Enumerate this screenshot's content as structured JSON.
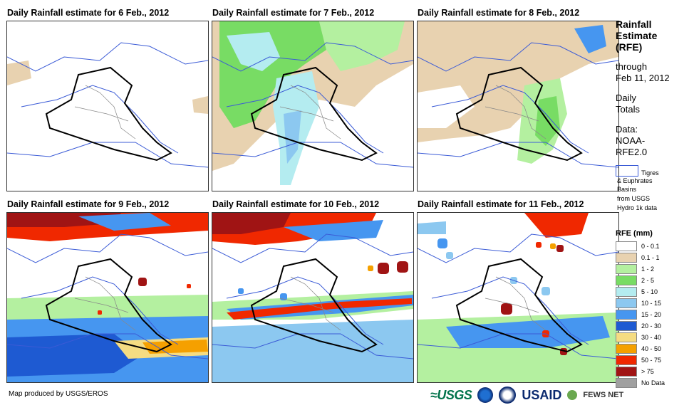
{
  "panels": [
    {
      "title": "Daily Rainfall estimate for 6 Feb., 2012",
      "pattern": "dry"
    },
    {
      "title": "Daily Rainfall estimate for 7 Feb., 2012",
      "pattern": "north_wet"
    },
    {
      "title": "Daily Rainfall estimate for 8 Feb., 2012",
      "pattern": "moderate"
    },
    {
      "title": "Daily Rainfall estimate for 9 Feb., 2012",
      "pattern": "bands"
    },
    {
      "title": "Daily Rainfall estimate for 10 Feb., 2012",
      "pattern": "bands2"
    },
    {
      "title": "Daily Rainfall estimate for 11 Feb., 2012",
      "pattern": "scattered"
    }
  ],
  "side": {
    "title_lines": [
      "Rainfall",
      "Estimate",
      "(RFE)"
    ],
    "through": "through",
    "date": "Feb 11, 2012",
    "daily_lines": [
      "Daily",
      "Totals"
    ],
    "data_lines": [
      "Data:",
      "NOAA-",
      "RFE2.0"
    ],
    "basin_lines": [
      "Tigres",
      "& Euphrates",
      "Basins",
      "from USGS",
      "Hydro 1k data"
    ]
  },
  "legend": {
    "title": "RFE (mm)",
    "items": [
      {
        "label": "0 - 0.1",
        "color": "#ffffff"
      },
      {
        "label": "0.1 - 1",
        "color": "#e8d2b0"
      },
      {
        "label": "1 - 2",
        "color": "#b4f0a0"
      },
      {
        "label": "2 - 5",
        "color": "#78dc64"
      },
      {
        "label": "5 - 10",
        "color": "#b4ecf0"
      },
      {
        "label": "10 - 15",
        "color": "#8cc8f0"
      },
      {
        "label": "15 - 20",
        "color": "#4696f0"
      },
      {
        "label": "20 - 30",
        "color": "#1e5ad2"
      },
      {
        "label": "30 - 40",
        "color": "#f5dc82"
      },
      {
        "label": "40 - 50",
        "color": "#f5a000"
      },
      {
        "label": "50 - 75",
        "color": "#f02800"
      },
      {
        "label": "> 75",
        "color": "#a01414"
      },
      {
        "label": "No Data",
        "color": "#a0a0a0"
      }
    ]
  },
  "credit": "Map produced by USGS/EROS",
  "logos": {
    "usgs": "≈USGS",
    "usaid": "USAID",
    "fews": "FEWS NET"
  }
}
